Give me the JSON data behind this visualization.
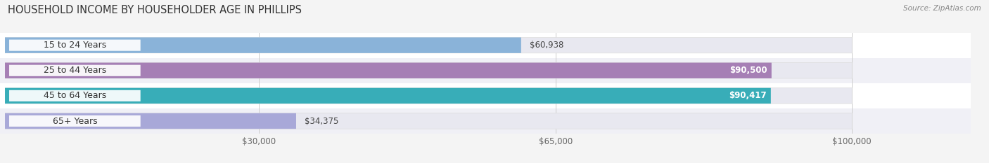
{
  "title": "HOUSEHOLD INCOME BY HOUSEHOLDER AGE IN PHILLIPS",
  "source": "Source: ZipAtlas.com",
  "categories": [
    "15 to 24 Years",
    "25 to 44 Years",
    "45 to 64 Years",
    "65+ Years"
  ],
  "values": [
    60938,
    90500,
    90417,
    34375
  ],
  "bar_colors": [
    "#8ab3d9",
    "#a67fb5",
    "#38adb8",
    "#a8a8d8"
  ],
  "value_labels": [
    "$60,938",
    "$90,500",
    "$90,417",
    "$34,375"
  ],
  "value_label_inside": [
    false,
    true,
    true,
    false
  ],
  "x_max": 100000,
  "x_ticks": [
    30000,
    65000,
    100000
  ],
  "x_tick_labels": [
    "$30,000",
    "$65,000",
    "$100,000"
  ],
  "bg_color": "#f4f4f4",
  "row_bg_color": "#eeeeee",
  "bar_track_color": "#e8e8f0",
  "title_fontsize": 10.5,
  "label_fontsize": 9,
  "value_fontsize": 8.5,
  "tick_fontsize": 8.5,
  "source_fontsize": 7.5
}
